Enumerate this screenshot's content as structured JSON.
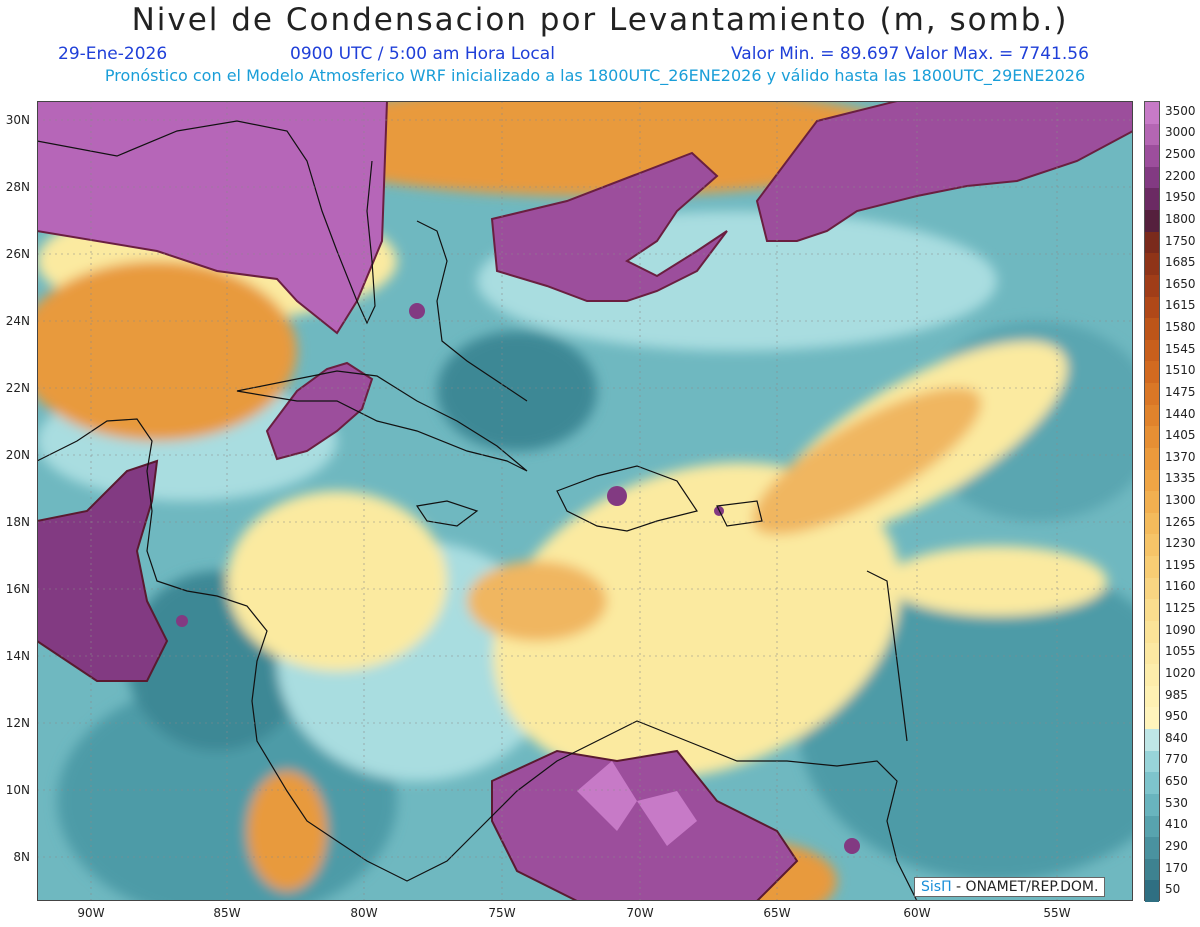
{
  "header": {
    "title": "Nivel de Condensacion por Levantamiento (m, somb.)",
    "date": "29-Ene-2026",
    "time": "0900 UTC / 5:00 am Hora Local",
    "minmax": "Valor Min. = 89.697   Valor Max. = 7741.56",
    "model_info": "Pronóstico con el Modelo Atmosferico WRF inicializado a las 1800UTC_26ENE2026 y válido hasta las  1800UTC_29ENE2026"
  },
  "map": {
    "lon_range": [
      -92.0,
      -51.6
    ],
    "lat_range": [
      6.8,
      30.6
    ],
    "lat_ticks": [
      "8N",
      "10N",
      "12N",
      "14N",
      "16N",
      "18N",
      "20N",
      "22N",
      "24N",
      "26N",
      "28N",
      "30N"
    ],
    "lon_ticks": [
      "90W",
      "85W",
      "80W",
      "75W",
      "70W",
      "65W",
      "60W",
      "55W"
    ],
    "colors": {
      "deep_teal": "#2b7b8a",
      "teal": "#57a8b3",
      "light_cyan": "#9fd8dc",
      "pale_yellow": "#fff2a8",
      "orange": "#e89a3c",
      "brown": "#b25a26",
      "dark_purple": "#7a2c6c",
      "purple": "#b666b8"
    }
  },
  "colorbar": {
    "labels": [
      "3500",
      "3000",
      "2500",
      "2200",
      "1950",
      "1800",
      "1750",
      "1685",
      "1650",
      "1615",
      "1580",
      "1545",
      "1510",
      "1475",
      "1440",
      "1405",
      "1370",
      "1335",
      "1300",
      "1265",
      "1230",
      "1195",
      "1160",
      "1125",
      "1090",
      "1055",
      "1020",
      "985",
      "950",
      "840",
      "770",
      "650",
      "530",
      "410",
      "290",
      "170",
      "50"
    ],
    "colors": [
      "#c77ac7",
      "#b466b3",
      "#9c4e9c",
      "#823a82",
      "#6b2a63",
      "#55203d",
      "#7a2a1c",
      "#8f3418",
      "#a03d18",
      "#b04818",
      "#bd5519",
      "#c85f1c",
      "#d26a20",
      "#da7726",
      "#e0832c",
      "#e68f34",
      "#eb9a3c",
      "#efa545",
      "#f2b050",
      "#f4bb5c",
      "#f6c468",
      "#f8cd74",
      "#f9d582",
      "#fadd8e",
      "#fbe398",
      "#fce8a2",
      "#fdedab",
      "#fef1b3",
      "#fff4bc",
      "#bfe6e6",
      "#98d4d9",
      "#7ec4cc",
      "#69b4be",
      "#58a3ae",
      "#4a929f",
      "#3e8290",
      "#2f6f82"
    ]
  },
  "credit": {
    "brand": "SisΠ",
    "text": " - ONAMET/REP.DOM."
  }
}
